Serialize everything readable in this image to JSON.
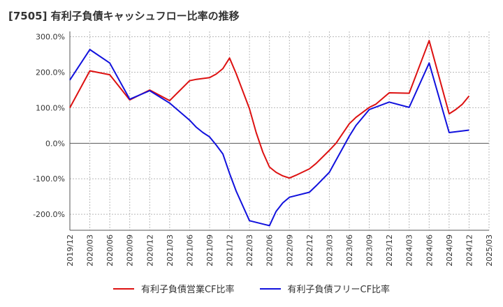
{
  "title": "[7505]  有利子負債キャッシュフロー比率の推移",
  "chart_data": {
    "type": "line",
    "x": [
      "2019/12",
      "2020/03",
      "2020/06",
      "2020/09",
      "2020/12",
      "2021/03",
      "2021/06",
      "2021/09",
      "2021/12",
      "2022/03",
      "2022/06",
      "2022/09",
      "2022/12",
      "2023/03",
      "2023/06",
      "2023/09",
      "2023/12",
      "2024/03",
      "2024/06",
      "2024/09",
      "2024/12",
      "2025/03"
    ],
    "ylim": [
      -245,
      315
    ],
    "y_ticks": [
      300,
      200,
      100,
      0,
      -100,
      -200
    ],
    "y_tick_labels": [
      "300.0%",
      "200.0%",
      "100.0%",
      "0.0%",
      "-100.0%",
      "-200.0%"
    ],
    "grid": true,
    "legend_position": "bottom",
    "series": [
      {
        "name": "有利子負債営業CF比率",
        "color": "#dd1111",
        "points": [
          [
            "2019/12",
            100
          ],
          [
            "2020/03",
            204
          ],
          [
            "2020/06",
            193
          ],
          [
            "2020/09",
            122
          ],
          [
            "2020/12",
            150
          ],
          [
            "2021/03",
            120
          ],
          [
            "2021/06",
            176
          ],
          [
            "2021/07",
            180
          ],
          [
            "2021/09",
            185
          ],
          [
            "2021/10",
            195
          ],
          [
            "2021/11",
            210
          ],
          [
            "2021/12",
            240
          ],
          [
            "2022/01",
            196
          ],
          [
            "2022/03",
            97
          ],
          [
            "2022/04",
            30
          ],
          [
            "2022/05",
            -25
          ],
          [
            "2022/06",
            -67
          ],
          [
            "2022/07",
            -82
          ],
          [
            "2022/08",
            -92
          ],
          [
            "2022/09",
            -98
          ],
          [
            "2022/10",
            -90
          ],
          [
            "2022/12",
            -72
          ],
          [
            "2023/01",
            -57
          ],
          [
            "2023/03",
            -20
          ],
          [
            "2023/04",
            0
          ],
          [
            "2023/06",
            55
          ],
          [
            "2023/07",
            73
          ],
          [
            "2023/09",
            101
          ],
          [
            "2023/10",
            110
          ],
          [
            "2023/12",
            142
          ],
          [
            "2024/03",
            141
          ],
          [
            "2024/06",
            289
          ],
          [
            "2024/09",
            83
          ],
          [
            "2024/10",
            95
          ],
          [
            "2024/11",
            110
          ],
          [
            "2024/12",
            133
          ]
        ]
      },
      {
        "name": "有利子負債フリーCF比率",
        "color": "#1111dd",
        "points": [
          [
            "2019/12",
            178
          ],
          [
            "2020/03",
            264
          ],
          [
            "2020/06",
            226
          ],
          [
            "2020/09",
            124
          ],
          [
            "2020/12",
            148
          ],
          [
            "2021/03",
            113
          ],
          [
            "2021/06",
            65
          ],
          [
            "2021/07",
            45
          ],
          [
            "2021/08",
            30
          ],
          [
            "2021/09",
            18
          ],
          [
            "2021/10",
            -5
          ],
          [
            "2021/11",
            -30
          ],
          [
            "2021/12",
            -85
          ],
          [
            "2022/01",
            -135
          ],
          [
            "2022/03",
            -218
          ],
          [
            "2022/06",
            -232
          ],
          [
            "2022/07",
            -192
          ],
          [
            "2022/08",
            -168
          ],
          [
            "2022/09",
            -152
          ],
          [
            "2022/12",
            -138
          ],
          [
            "2023/01",
            -120
          ],
          [
            "2023/03",
            -82
          ],
          [
            "2023/06",
            20
          ],
          [
            "2023/07",
            50
          ],
          [
            "2023/09",
            95
          ],
          [
            "2023/12",
            116
          ],
          [
            "2024/03",
            101
          ],
          [
            "2024/06",
            226
          ],
          [
            "2024/09",
            30
          ],
          [
            "2024/12",
            37
          ]
        ]
      }
    ]
  }
}
